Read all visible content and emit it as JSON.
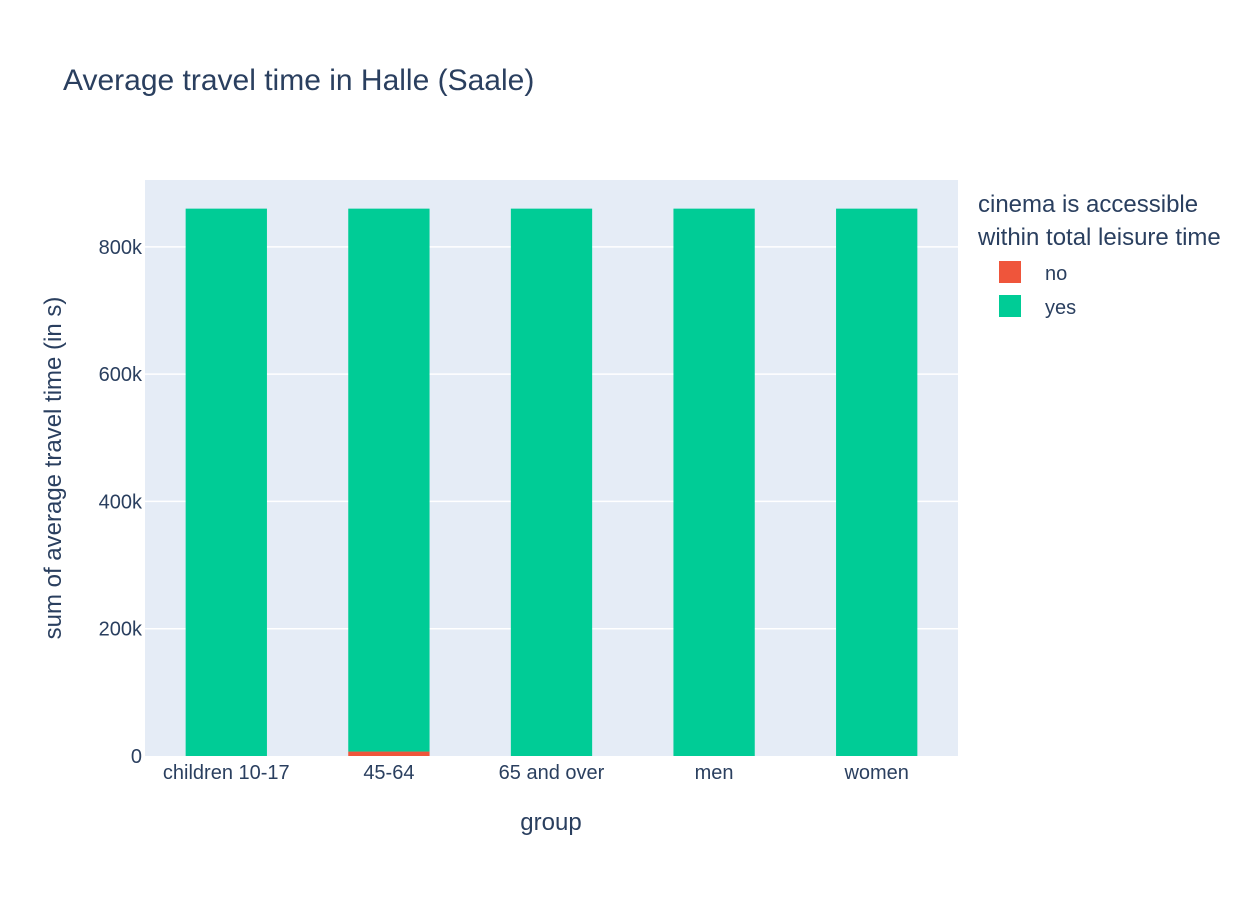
{
  "chart_data": {
    "type": "bar",
    "barmode": "stack",
    "title": "Average travel time in Halle (Saale)",
    "xlabel": "group",
    "ylabel": "sum of average travel time (in s)",
    "categories": [
      "children 10-17",
      "45-64",
      "65 and over",
      "men",
      "women"
    ],
    "ylim": [
      0,
      905000
    ],
    "yticks": [
      0,
      200000,
      400000,
      600000,
      800000
    ],
    "ytick_labels": [
      "0",
      "200k",
      "400k",
      "600k",
      "800k"
    ],
    "grid": true,
    "legend": {
      "title_lines": [
        "cinema is accessible",
        "within total leisure time"
      ],
      "placement": "right"
    },
    "series": [
      {
        "name": "no",
        "color": "#EF553B",
        "values": [
          0,
          7000,
          0,
          0,
          0
        ]
      },
      {
        "name": "yes",
        "color": "#00CC96",
        "values": [
          860000,
          853000,
          860000,
          860000,
          860000
        ]
      }
    ],
    "plot_bg": "#E5ECF6"
  }
}
